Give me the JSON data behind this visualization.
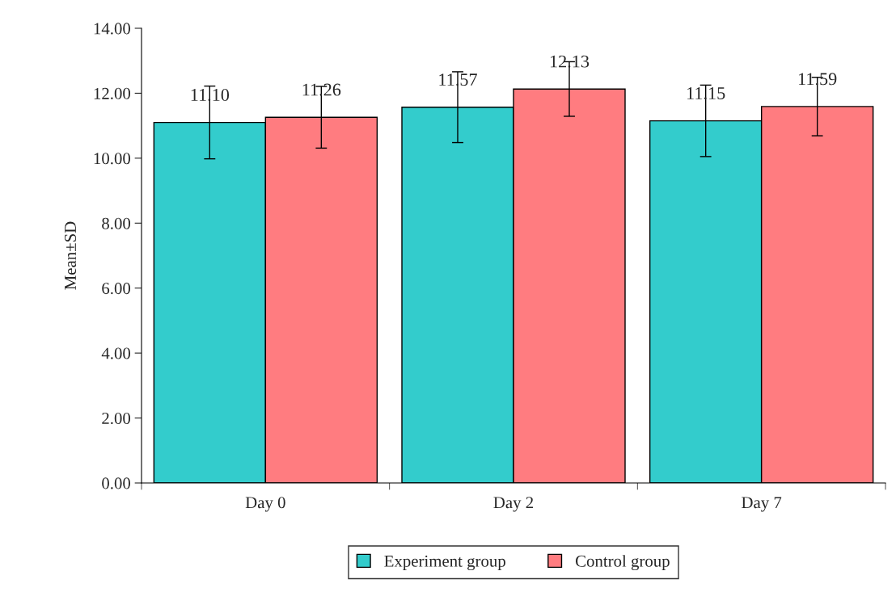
{
  "chart_data": {
    "type": "bar",
    "ylabel": "Mean±SD",
    "categories": [
      "Day 0",
      "Day 2",
      "Day 7"
    ],
    "series": [
      {
        "name": "Experiment group",
        "color": "#33cccc",
        "values": [
          11.1,
          11.57,
          11.15
        ],
        "value_labels": [
          "11.10",
          "11.57",
          "11.15"
        ],
        "errors": [
          1.12,
          1.09,
          1.1
        ]
      },
      {
        "name": "Control group",
        "color": "#ff7c80",
        "values": [
          11.26,
          12.13,
          11.59
        ],
        "value_labels": [
          "11.26",
          "12.13",
          "11.59"
        ],
        "errors": [
          0.95,
          0.84,
          0.9
        ]
      }
    ],
    "ylim": [
      0,
      14
    ],
    "yticks": [
      {
        "value": 0,
        "label": "0.00"
      },
      {
        "value": 2,
        "label": "2.00"
      },
      {
        "value": 4,
        "label": "4.00"
      },
      {
        "value": 6,
        "label": "6.00"
      },
      {
        "value": 8,
        "label": "8.00"
      },
      {
        "value": 10,
        "label": "10.00"
      },
      {
        "value": 12,
        "label": "12.00"
      },
      {
        "value": 14,
        "label": "14.00"
      }
    ],
    "grid": false,
    "legend": "bottom"
  }
}
